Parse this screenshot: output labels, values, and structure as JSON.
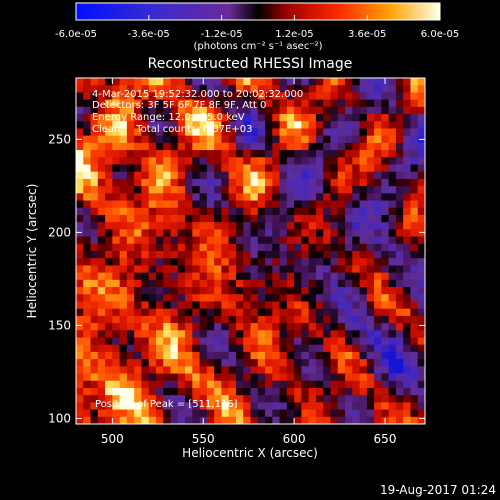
{
  "colorbar": {
    "tick_labels": [
      "-6.0e-05",
      "-3.6e-05",
      "-1.2e-05",
      "1.2e-05",
      "3.6e-05",
      "6.0e-05"
    ],
    "units": "(photons cm⁻² s⁻¹ asec⁻²)",
    "range": [
      -6e-05,
      6e-05
    ]
  },
  "chart_data": {
    "type": "heatmap",
    "title": "Reconstructed RHESSI Image",
    "xlabel": "Heliocentric X (arcsec)",
    "ylabel": "Heliocentric Y (arcsec)",
    "xlim": [
      480,
      672
    ],
    "ylim": [
      97,
      283
    ],
    "xticks": [
      "500",
      "550",
      "600",
      "650"
    ],
    "yticks": [
      "100",
      "150",
      "200",
      "250"
    ],
    "xtick_values": [
      500,
      550,
      600,
      650
    ],
    "ytick_values": [
      100,
      150,
      200,
      250
    ],
    "annotations": [
      "4-Mar-2015 19:52:32.000 to 20:02:32.000",
      "Detectors: 3F 5F 6F 7F 8F 9F, Att 0",
      "Energy Range: 12.0 - 25.0 keV",
      "Clean     Total counts: 6.37E+03"
    ],
    "peak_label": "Position of Peak = [511,116]",
    "peak_position": [
      511,
      116
    ]
  },
  "footer": {
    "date": "19-Aug-2017 01:24"
  }
}
